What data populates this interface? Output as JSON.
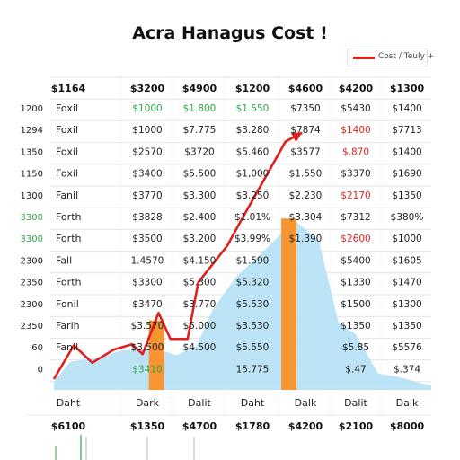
{
  "chart_data": {
    "type": "line",
    "title": "Acra Hanagus Cost !",
    "legend": {
      "placement": "top-right",
      "label": "Cost / Teuly +"
    },
    "grid": true,
    "colors": {
      "line": "#e31e1e",
      "area": "#b5e0f5",
      "bar": "#f79533",
      "green": "#2fa84a",
      "red": "#e02222"
    },
    "header_row": [
      "$1164",
      "$3200",
      "$4900",
      "$1200",
      "$4600",
      "$4200",
      "$1300"
    ],
    "footer_row": [
      "$6100",
      "$1350",
      "$4700",
      "$1780",
      "$4200",
      "$2100",
      "$8000"
    ],
    "y_tick_labels": [
      {
        "text": "1200",
        "color": "#222"
      },
      {
        "text": "1294",
        "color": "#222"
      },
      {
        "text": "1350",
        "color": "#222"
      },
      {
        "text": "1150",
        "color": "#222"
      },
      {
        "text": "1300",
        "color": "#222"
      },
      {
        "text": "3300",
        "color": "#2fa84a"
      },
      {
        "text": "3300",
        "color": "#2fa84a"
      },
      {
        "text": "2300",
        "color": "#222"
      },
      {
        "text": "2350",
        "color": "#222"
      },
      {
        "text": "2300",
        "color": "#222"
      },
      {
        "text": "2350",
        "color": "#222"
      },
      {
        "text": "60",
        "color": "#222"
      },
      {
        "text": "0",
        "color": "#222"
      }
    ],
    "rows": [
      {
        "label": "Foxil",
        "cells": [
          [
            "$1000",
            "g"
          ],
          [
            "$1.800",
            "g"
          ],
          [
            "$1.550",
            "g"
          ],
          [
            "$7350",
            ""
          ],
          [
            "$5430",
            ""
          ],
          [
            "$1400",
            ""
          ]
        ]
      },
      {
        "label": "Foxil",
        "cells": [
          [
            "$1000",
            ""
          ],
          [
            "$7.775",
            ""
          ],
          [
            "$3.280",
            ""
          ],
          [
            "$7874",
            ""
          ],
          [
            "$1400",
            "r"
          ],
          [
            "$7713",
            ""
          ]
        ]
      },
      {
        "label": "Foxil",
        "cells": [
          [
            "$2570",
            ""
          ],
          [
            "$3720",
            ""
          ],
          [
            "$5.460",
            ""
          ],
          [
            "$3577",
            ""
          ],
          [
            "$.870",
            "r"
          ],
          [
            "$1400",
            ""
          ]
        ]
      },
      {
        "label": "Foxil",
        "cells": [
          [
            "$3400",
            ""
          ],
          [
            "$5.500",
            ""
          ],
          [
            "$1,000",
            ""
          ],
          [
            "$1.550",
            ""
          ],
          [
            "$3370",
            ""
          ],
          [
            "$1690",
            ""
          ]
        ]
      },
      {
        "label": "Fanil",
        "cells": [
          [
            "$3770",
            ""
          ],
          [
            "$3.300",
            ""
          ],
          [
            "$3.250",
            ""
          ],
          [
            "$2.230",
            ""
          ],
          [
            "$2170",
            "r"
          ],
          [
            "$1350",
            ""
          ]
        ]
      },
      {
        "label": "Forth",
        "cells": [
          [
            "$3828",
            ""
          ],
          [
            "$2.400",
            ""
          ],
          [
            "$1.01%",
            ""
          ],
          [
            "$3.304",
            ""
          ],
          [
            "$7312",
            ""
          ],
          [
            "$380%",
            ""
          ]
        ]
      },
      {
        "label": "Forth",
        "cells": [
          [
            "$3500",
            ""
          ],
          [
            "$3.200",
            ""
          ],
          [
            "$3.99%",
            ""
          ],
          [
            "$1.390",
            ""
          ],
          [
            "$2600",
            "r"
          ],
          [
            "$1000",
            ""
          ]
        ]
      },
      {
        "label": "Fall",
        "cells": [
          [
            "1.4570",
            ""
          ],
          [
            "$4.150",
            ""
          ],
          [
            "$1.590",
            ""
          ],
          [
            "",
            ""
          ],
          [
            "$5400",
            ""
          ],
          [
            "$1605",
            ""
          ]
        ]
      },
      {
        "label": "Forth",
        "cells": [
          [
            "$3300",
            ""
          ],
          [
            "$5.300",
            ""
          ],
          [
            "$5.320",
            ""
          ],
          [
            "",
            ""
          ],
          [
            "$1330",
            ""
          ],
          [
            "$1470",
            ""
          ]
        ]
      },
      {
        "label": "Fonil",
        "cells": [
          [
            "$3470",
            ""
          ],
          [
            "$3.770",
            ""
          ],
          [
            "$5.530",
            ""
          ],
          [
            "",
            ""
          ],
          [
            "$1500",
            ""
          ],
          [
            "$1300",
            ""
          ]
        ]
      },
      {
        "label": "Farih",
        "cells": [
          [
            "$3.570",
            ""
          ],
          [
            "$5.000",
            ""
          ],
          [
            "$3.530",
            ""
          ],
          [
            "",
            ""
          ],
          [
            "$1350",
            ""
          ],
          [
            "$1350",
            ""
          ]
        ]
      },
      {
        "label": "Fanil",
        "cells": [
          [
            "$3.500",
            ""
          ],
          [
            "$4.500",
            ""
          ],
          [
            "$5.550",
            ""
          ],
          [
            "",
            ""
          ],
          [
            "$5.85",
            ""
          ],
          [
            "$5576",
            ""
          ]
        ]
      },
      {
        "label": "",
        "cells": [
          [
            "$3410",
            "g"
          ],
          [
            "",
            ""
          ],
          [
            "15.775",
            ""
          ],
          [
            "",
            ""
          ],
          [
            "$.47",
            ""
          ],
          [
            "$.374",
            ""
          ]
        ]
      }
    ],
    "x_categories": [
      "Daht",
      "Dark",
      "Dalit",
      "Daht",
      "Dalk",
      "Dalit",
      "Dalk"
    ],
    "line_series": {
      "x": [
        0,
        0.3,
        0.58,
        0.9,
        1.18,
        1.34,
        1.58,
        1.76,
        2.02,
        2.18,
        2.62,
        2.78,
        3.5,
        3.75
      ],
      "y": [
        0.5,
        2.05,
        1.25,
        1.85,
        2.1,
        1.65,
        3.55,
        2.35,
        2.35,
        4.95,
        6.65,
        7.55,
        11.45,
        11.85
      ]
    },
    "area_series": {
      "x": [
        0,
        0.25,
        0.7,
        1.0,
        1.3,
        1.6,
        1.85,
        2.15,
        2.4,
        2.75,
        3.1,
        3.4,
        3.55,
        3.6,
        4.0,
        4.3,
        4.55,
        4.9,
        5.2,
        5.5,
        5.7
      ],
      "y": [
        0.4,
        1.3,
        1.5,
        1.8,
        1.9,
        1.85,
        1.6,
        2.0,
        3.7,
        5.2,
        6.2,
        7.1,
        7.9,
        7.9,
        6.9,
        3.1,
        2.6,
        0.75,
        0.6,
        0.35,
        0.2
      ]
    },
    "bars": [
      {
        "x": 1.55,
        "value": 3.2
      },
      {
        "x": 3.55,
        "value": 7.9
      }
    ],
    "ylim": [
      0,
      13
    ],
    "xlim": [
      0,
      5.7
    ]
  }
}
